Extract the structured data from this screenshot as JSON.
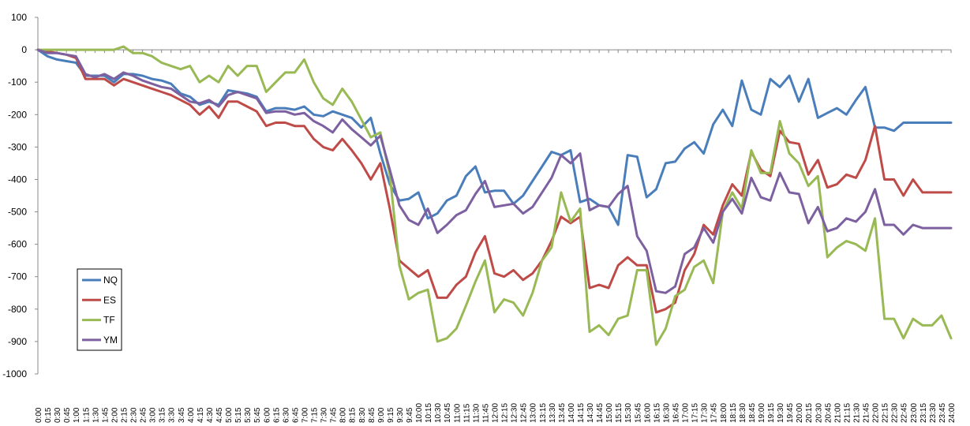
{
  "chart_data": {
    "type": "line",
    "title": "",
    "xlabel": "",
    "ylabel": "",
    "ylim": [
      -1000,
      100
    ],
    "ytick_step": 100,
    "grid": false,
    "legend_placement": "bottom-left",
    "x": [
      "0:00",
      "0:15",
      "0:30",
      "0:45",
      "1:00",
      "1:15",
      "1:30",
      "1:45",
      "2:00",
      "2:15",
      "2:30",
      "2:45",
      "3:00",
      "3:15",
      "3:30",
      "3:45",
      "4:00",
      "4:15",
      "4:30",
      "4:45",
      "5:00",
      "5:15",
      "5:30",
      "5:45",
      "6:00",
      "6:15",
      "6:30",
      "6:45",
      "7:00",
      "7:15",
      "7:30",
      "7:45",
      "8:00",
      "8:15",
      "8:30",
      "8:45",
      "9:00",
      "9:15",
      "9:30",
      "9:45",
      "10:00",
      "10:15",
      "10:30",
      "10:45",
      "11:00",
      "11:15",
      "11:30",
      "11:45",
      "12:00",
      "12:15",
      "12:30",
      "12:45",
      "13:00",
      "13:15",
      "13:30",
      "13:45",
      "14:00",
      "14:15",
      "14:30",
      "14:45",
      "15:00",
      "15:15",
      "15:30",
      "15:45",
      "16:00",
      "16:15",
      "16:30",
      "16:45",
      "17:00",
      "17:15",
      "17:30",
      "17:45",
      "18:00",
      "18:15",
      "18:30",
      "18:45",
      "19:00",
      "19:15",
      "19:30",
      "19:45",
      "20:00",
      "20:15",
      "20:30",
      "20:45",
      "21:00",
      "21:15",
      "21:30",
      "21:45",
      "22:00",
      "22:15",
      "22:30",
      "22:45",
      "23:00",
      "23:15",
      "23:30",
      "23:45",
      "24:00"
    ],
    "series": [
      {
        "name": "NQ",
        "color": "#4a7ebb",
        "values": [
          0,
          -20,
          -30,
          -35,
          -40,
          -80,
          -80,
          -80,
          -100,
          -75,
          -75,
          -80,
          -90,
          -95,
          -105,
          -135,
          -145,
          -170,
          -160,
          -170,
          -125,
          -130,
          -135,
          -145,
          -190,
          -180,
          -180,
          -185,
          -175,
          -200,
          -205,
          -190,
          -200,
          -210,
          -240,
          -210,
          -320,
          -415,
          -465,
          -460,
          -440,
          -520,
          -505,
          -465,
          -450,
          -390,
          -360,
          -440,
          -435,
          -435,
          -475,
          -450,
          -405,
          -360,
          -315,
          -325,
          -310,
          -470,
          -460,
          -480,
          -485,
          -540,
          -325,
          -330,
          -455,
          -430,
          -350,
          -345,
          -305,
          -285,
          -320,
          -230,
          -185,
          -235,
          -95,
          -185,
          -200,
          -90,
          -115,
          -80,
          -160,
          -90,
          -210,
          -195,
          -180,
          -200,
          -155,
          -115,
          -240,
          -240,
          -250,
          -225,
          -225,
          -225,
          -225,
          -225,
          -225
        ]
      },
      {
        "name": "ES",
        "color": "#be4b48",
        "values": [
          0,
          -5,
          -10,
          -15,
          -25,
          -90,
          -90,
          -90,
          -110,
          -90,
          -100,
          -110,
          -120,
          -130,
          -140,
          -155,
          -170,
          -200,
          -175,
          -210,
          -160,
          -160,
          -175,
          -190,
          -235,
          -225,
          -225,
          -235,
          -235,
          -275,
          -300,
          -310,
          -275,
          -310,
          -350,
          -400,
          -350,
          -490,
          -650,
          -675,
          -700,
          -680,
          -765,
          -765,
          -725,
          -700,
          -625,
          -575,
          -690,
          -700,
          -680,
          -710,
          -690,
          -650,
          -590,
          -515,
          -535,
          -515,
          -735,
          -725,
          -735,
          -665,
          -640,
          -665,
          -665,
          -810,
          -800,
          -780,
          -680,
          -630,
          -540,
          -570,
          -480,
          -415,
          -450,
          -315,
          -370,
          -390,
          -250,
          -285,
          -290,
          -385,
          -340,
          -425,
          -415,
          -385,
          -395,
          -340,
          -235,
          -400,
          -400,
          -450,
          -400,
          -440,
          -440,
          -440,
          -440
        ]
      },
      {
        "name": "TF",
        "color": "#98b954",
        "values": [
          0,
          0,
          0,
          0,
          0,
          0,
          0,
          0,
          0,
          10,
          -10,
          -10,
          -20,
          -40,
          -50,
          -60,
          -50,
          -100,
          -80,
          -100,
          -50,
          -80,
          -50,
          -50,
          -130,
          -100,
          -70,
          -70,
          -30,
          -100,
          -150,
          -170,
          -120,
          -160,
          -215,
          -270,
          -255,
          -385,
          -665,
          -770,
          -750,
          -740,
          -900,
          -890,
          -860,
          -790,
          -715,
          -650,
          -810,
          -770,
          -780,
          -820,
          -750,
          -650,
          -610,
          -440,
          -530,
          -490,
          -870,
          -850,
          -880,
          -830,
          -820,
          -680,
          -680,
          -910,
          -860,
          -760,
          -740,
          -670,
          -650,
          -720,
          -500,
          -440,
          -490,
          -310,
          -380,
          -380,
          -220,
          -320,
          -350,
          -420,
          -390,
          -640,
          -610,
          -590,
          -600,
          -620,
          -520,
          -830,
          -830,
          -890,
          -830,
          -850,
          -850,
          -820,
          -890
        ]
      },
      {
        "name": "YM",
        "color": "#7d60a0",
        "values": [
          0,
          -10,
          -10,
          -15,
          -20,
          -75,
          -85,
          -75,
          -90,
          -70,
          -80,
          -95,
          -105,
          -115,
          -120,
          -140,
          -160,
          -165,
          -155,
          -175,
          -140,
          -130,
          -140,
          -150,
          -195,
          -190,
          -190,
          -200,
          -195,
          -220,
          -235,
          -255,
          -215,
          -245,
          -270,
          -295,
          -265,
          -370,
          -480,
          -525,
          -540,
          -490,
          -565,
          -540,
          -510,
          -495,
          -445,
          -405,
          -485,
          -480,
          -475,
          -505,
          -485,
          -440,
          -395,
          -325,
          -350,
          -320,
          -495,
          -480,
          -485,
          -445,
          -420,
          -575,
          -620,
          -745,
          -750,
          -730,
          -630,
          -610,
          -550,
          -595,
          -500,
          -460,
          -505,
          -395,
          -455,
          -465,
          -380,
          -440,
          -445,
          -535,
          -485,
          -560,
          -550,
          -520,
          -530,
          -500,
          -430,
          -540,
          -540,
          -570,
          -540,
          -550,
          -550,
          -550,
          -550
        ]
      }
    ]
  }
}
